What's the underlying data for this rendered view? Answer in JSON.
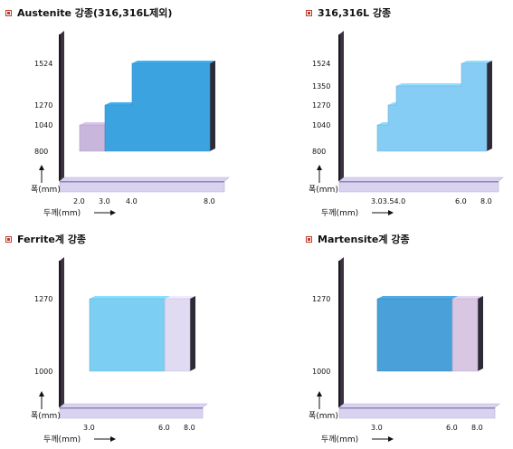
{
  "chart_data": [
    {
      "type": "area",
      "title": "Austenite 강종(316,316L제외)",
      "xlabel": "두께(mm)",
      "ylabel": "폭(mm)",
      "x_ticks": [
        "2.0",
        "3.0",
        "4.0",
        "8.0"
      ],
      "y_ticks": [
        "800",
        "1040",
        "1270",
        "1524"
      ],
      "regions": [
        {
          "color": "#c9b6dc",
          "steps": [
            {
              "x0": 2.0,
              "x1": 3.0,
              "y": 1040
            }
          ]
        },
        {
          "color": "#3ba3e0",
          "steps": [
            {
              "x0": 3.0,
              "x1": 4.0,
              "y": 1270
            },
            {
              "x0": 4.0,
              "x1": 8.0,
              "y": 1524
            }
          ]
        }
      ],
      "ymin": 800
    },
    {
      "type": "area",
      "title": "316,316L 강종",
      "xlabel": "두께(mm)",
      "ylabel": "폭(mm)",
      "x_ticks": [
        "3.0",
        "3.5",
        "4.0",
        "6.0",
        "8.0"
      ],
      "x_tick_text": "3.03.54.0",
      "y_ticks": [
        "800",
        "1040",
        "1270",
        "1350",
        "1524"
      ],
      "regions": [
        {
          "color": "#86cdf5",
          "steps": [
            {
              "x0": 3.0,
              "x1": 3.5,
              "y": 1040
            },
            {
              "x0": 3.5,
              "x1": 4.0,
              "y": 1270
            },
            {
              "x0": 4.0,
              "x1": 6.0,
              "y": 1350
            },
            {
              "x0": 6.0,
              "x1": 8.0,
              "y": 1524
            }
          ]
        }
      ],
      "ymin": 800
    },
    {
      "type": "area",
      "title": "Ferrite계 강종",
      "xlabel": "두께(mm)",
      "ylabel": "폭(mm)",
      "x_ticks": [
        "3.0",
        "6.0",
        "8.0"
      ],
      "y_ticks": [
        "1000",
        "1270"
      ],
      "regions": [
        {
          "color": "#7ccff2",
          "steps": [
            {
              "x0": 3.0,
              "x1": 6.0,
              "y": 1270
            }
          ]
        },
        {
          "color": "#e0daf3",
          "steps": [
            {
              "x0": 6.0,
              "x1": 8.0,
              "y": 1270
            }
          ]
        }
      ],
      "ymin": 1000
    },
    {
      "type": "area",
      "title": "Martensite계 강종",
      "xlabel": "두께(mm)",
      "ylabel": "폭(mm)",
      "x_ticks": [
        "3.0",
        "6.0",
        "8.0"
      ],
      "y_ticks": [
        "1000",
        "1270"
      ],
      "regions": [
        {
          "color": "#4aa0d9",
          "steps": [
            {
              "x0": 3.0,
              "x1": 6.0,
              "y": 1270
            }
          ]
        },
        {
          "color": "#d8c6e2",
          "steps": [
            {
              "x0": 6.0,
              "x1": 8.0,
              "y": 1270
            }
          ]
        }
      ],
      "ymin": 1000
    }
  ]
}
